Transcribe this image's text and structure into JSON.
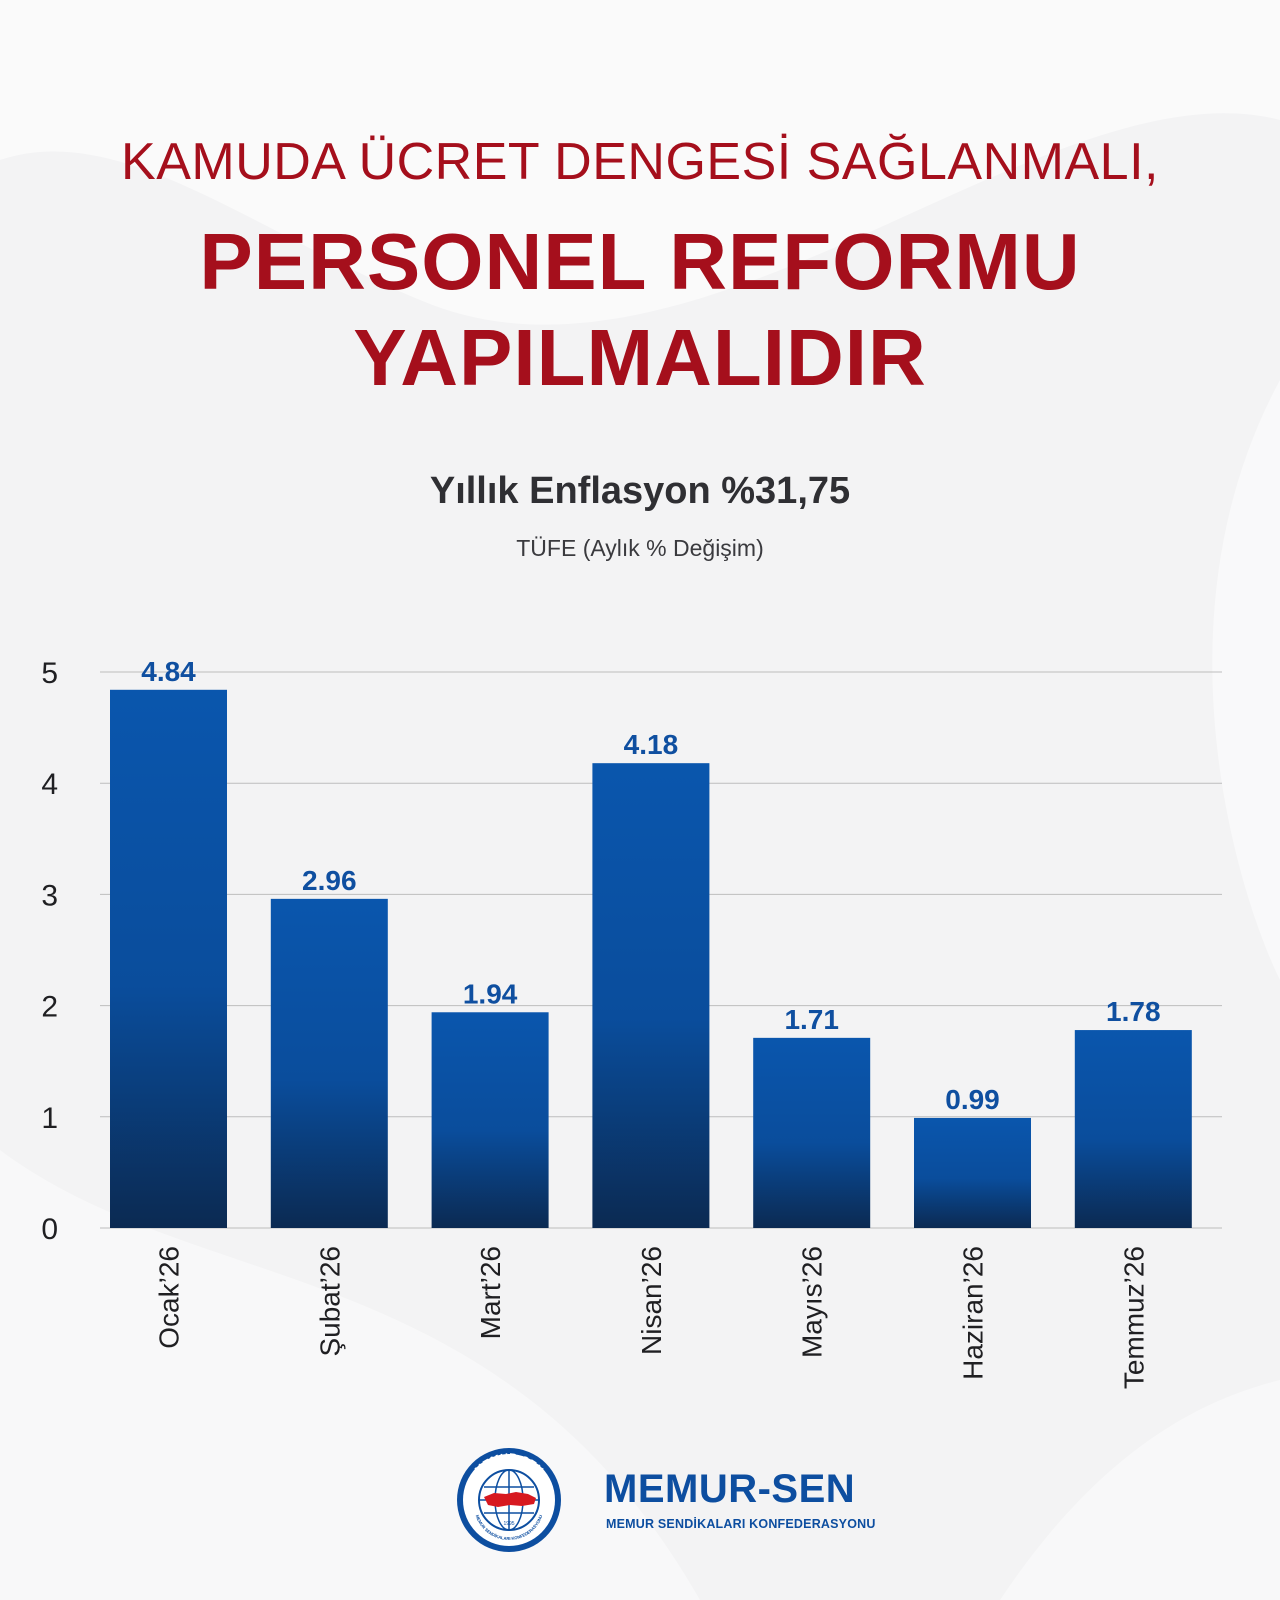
{
  "headline": {
    "line1": "KAMUDA ÜCRET DENGESİ SAĞLANMALI,",
    "line2": "PERSONEL REFORMU",
    "line3": "YAPILMALIDIR"
  },
  "chart_data": {
    "type": "bar",
    "title": "Yıllık Enflasyon %31,75",
    "subtitle": "TÜFE (Aylık % Değişim)",
    "categories": [
      "Ocak’26",
      "Şubat’26",
      "Mart’26",
      "Nisan’26",
      "Mayıs’26",
      "Haziran’26",
      "Temmuz’26"
    ],
    "values": [
      4.84,
      2.96,
      1.94,
      4.18,
      1.71,
      0.99,
      1.78
    ],
    "value_labels": [
      "4.84",
      "2.96",
      "1.94",
      "4.18",
      "1.71",
      "0.99",
      "1.78"
    ],
    "yticks": [
      0,
      1,
      2,
      3,
      4,
      5
    ],
    "ylim": [
      0,
      5
    ],
    "xlabel": "",
    "ylabel": "",
    "grid": true,
    "legend": "none",
    "colors": {
      "bar_top": "#0a56ad",
      "bar_bottom": "#0b2a52",
      "value_label": "#0f4fa0",
      "gridline": "#bdbdbd"
    }
  },
  "brand": {
    "name": "MEMUR-SEN",
    "subtitle": "MEMUR SENDİKALARI KONFEDERASYONU",
    "logo_ring_text": "MEMUR-SEN",
    "logo_lower_text": "MEMUR SENDİKALARI KONFEDERASYONU",
    "logo_year": "1995",
    "color": "#0d4ea0"
  },
  "colors": {
    "headline": "#a50f1c",
    "title": "#2f2f33",
    "background": "#f3f3f4"
  }
}
